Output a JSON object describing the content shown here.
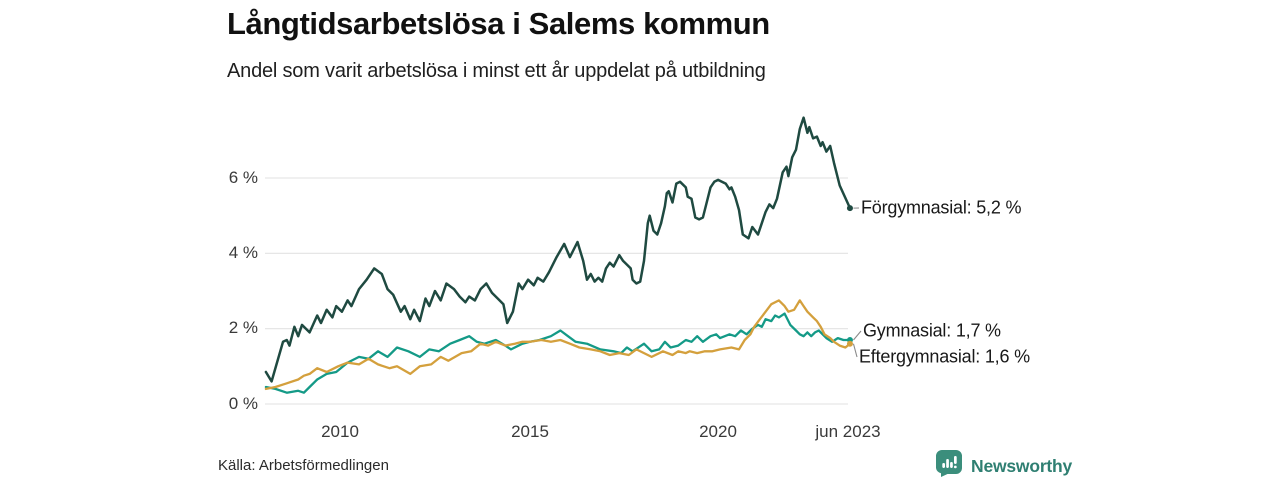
{
  "header": {
    "title": "Långtidsarbetslösa i Salems kommun",
    "subtitle": "Andel som varit arbetslösa i minst ett år uppdelat på utbildning"
  },
  "footer": {
    "source": "Källa: Arbetsförmedlingen",
    "brand": "Newsworthy",
    "brand_icon": "bar-chart-speech-bubble-icon",
    "brand_color": "#3b8e7c",
    "brand_text_color": "#2f7f72"
  },
  "chart_data": {
    "type": "line",
    "title": "Långtidsarbetslösa i Salems kommun",
    "subtitle": "Andel som varit arbetslösa i minst ett år uppdelat på utbildning",
    "xlabel": "",
    "ylabel": "",
    "grid": true,
    "grid_color": "#e2e2e2",
    "connector_color": "#8a8a8a",
    "legend_position": "right-end-labels",
    "x_axis": {
      "ticks": [
        "2010",
        "2015",
        "2020",
        "jun 2023"
      ],
      "tick_years": [
        2010,
        2015,
        2020,
        2023.42
      ],
      "range_years": [
        2008.0,
        2023.45
      ]
    },
    "y_axis": {
      "ticks": [
        "0 %",
        "2 %",
        "4 %",
        "6 %"
      ],
      "tick_values": [
        0,
        2,
        4,
        6
      ],
      "range": [
        0,
        7.8
      ]
    },
    "series": [
      {
        "name": "Förgymnasial",
        "end_label": "Förgymnasial: 5,2 %",
        "end_value": "5,2 %",
        "color": "#1f4a41",
        "points": [
          [
            2008.05,
            0.85
          ],
          [
            2008.2,
            0.6
          ],
          [
            2008.5,
            1.65
          ],
          [
            2008.6,
            1.7
          ],
          [
            2008.67,
            1.55
          ],
          [
            2008.8,
            2.05
          ],
          [
            2008.9,
            1.8
          ],
          [
            2009.0,
            2.1
          ],
          [
            2009.2,
            1.9
          ],
          [
            2009.4,
            2.35
          ],
          [
            2009.5,
            2.15
          ],
          [
            2009.65,
            2.5
          ],
          [
            2009.8,
            2.3
          ],
          [
            2009.9,
            2.6
          ],
          [
            2010.05,
            2.45
          ],
          [
            2010.2,
            2.75
          ],
          [
            2010.3,
            2.6
          ],
          [
            2010.5,
            3.05
          ],
          [
            2010.7,
            3.3
          ],
          [
            2010.9,
            3.6
          ],
          [
            2011.1,
            3.45
          ],
          [
            2011.25,
            3.05
          ],
          [
            2011.4,
            2.9
          ],
          [
            2011.6,
            2.45
          ],
          [
            2011.7,
            2.6
          ],
          [
            2011.85,
            2.25
          ],
          [
            2011.95,
            2.5
          ],
          [
            2012.1,
            2.2
          ],
          [
            2012.25,
            2.8
          ],
          [
            2012.35,
            2.6
          ],
          [
            2012.5,
            3.0
          ],
          [
            2012.65,
            2.75
          ],
          [
            2012.8,
            3.2
          ],
          [
            2013.0,
            3.05
          ],
          [
            2013.15,
            2.85
          ],
          [
            2013.3,
            2.7
          ],
          [
            2013.4,
            2.85
          ],
          [
            2013.55,
            2.75
          ],
          [
            2013.7,
            3.05
          ],
          [
            2013.85,
            3.2
          ],
          [
            2014.0,
            2.95
          ],
          [
            2014.15,
            2.8
          ],
          [
            2014.3,
            2.65
          ],
          [
            2014.4,
            2.15
          ],
          [
            2014.55,
            2.45
          ],
          [
            2014.7,
            3.2
          ],
          [
            2014.8,
            3.05
          ],
          [
            2014.95,
            3.3
          ],
          [
            2015.1,
            3.15
          ],
          [
            2015.2,
            3.35
          ],
          [
            2015.35,
            3.25
          ],
          [
            2015.5,
            3.5
          ],
          [
            2015.7,
            3.9
          ],
          [
            2015.9,
            4.25
          ],
          [
            2016.05,
            3.9
          ],
          [
            2016.25,
            4.3
          ],
          [
            2016.4,
            3.8
          ],
          [
            2016.5,
            3.3
          ],
          [
            2016.6,
            3.45
          ],
          [
            2016.7,
            3.25
          ],
          [
            2016.8,
            3.35
          ],
          [
            2016.9,
            3.25
          ],
          [
            2017.0,
            3.6
          ],
          [
            2017.1,
            3.75
          ],
          [
            2017.2,
            3.65
          ],
          [
            2017.3,
            3.85
          ],
          [
            2017.35,
            3.95
          ],
          [
            2017.45,
            3.8
          ],
          [
            2017.55,
            3.7
          ],
          [
            2017.65,
            3.6
          ],
          [
            2017.7,
            3.3
          ],
          [
            2017.8,
            3.2
          ],
          [
            2017.9,
            3.25
          ],
          [
            2018.0,
            3.8
          ],
          [
            2018.1,
            4.8
          ],
          [
            2018.15,
            5.0
          ],
          [
            2018.25,
            4.6
          ],
          [
            2018.35,
            4.5
          ],
          [
            2018.45,
            4.8
          ],
          [
            2018.55,
            5.25
          ],
          [
            2018.6,
            5.6
          ],
          [
            2018.65,
            5.65
          ],
          [
            2018.75,
            5.35
          ],
          [
            2018.85,
            5.85
          ],
          [
            2018.95,
            5.9
          ],
          [
            2019.1,
            5.75
          ],
          [
            2019.15,
            5.5
          ],
          [
            2019.25,
            5.45
          ],
          [
            2019.35,
            4.95
          ],
          [
            2019.45,
            4.9
          ],
          [
            2019.55,
            4.95
          ],
          [
            2019.65,
            5.35
          ],
          [
            2019.75,
            5.75
          ],
          [
            2019.85,
            5.9
          ],
          [
            2019.95,
            5.95
          ],
          [
            2020.05,
            5.9
          ],
          [
            2020.15,
            5.85
          ],
          [
            2020.25,
            5.7
          ],
          [
            2020.3,
            5.75
          ],
          [
            2020.4,
            5.5
          ],
          [
            2020.5,
            5.15
          ],
          [
            2020.6,
            4.5
          ],
          [
            2020.75,
            4.4
          ],
          [
            2020.85,
            4.7
          ],
          [
            2021.0,
            4.5
          ],
          [
            2021.1,
            4.8
          ],
          [
            2021.2,
            5.1
          ],
          [
            2021.3,
            5.3
          ],
          [
            2021.4,
            5.2
          ],
          [
            2021.5,
            5.45
          ],
          [
            2021.65,
            6.15
          ],
          [
            2021.75,
            6.3
          ],
          [
            2021.8,
            6.05
          ],
          [
            2021.9,
            6.55
          ],
          [
            2022.0,
            6.75
          ],
          [
            2022.1,
            7.3
          ],
          [
            2022.2,
            7.6
          ],
          [
            2022.3,
            7.2
          ],
          [
            2022.35,
            7.35
          ],
          [
            2022.45,
            7.05
          ],
          [
            2022.55,
            7.1
          ],
          [
            2022.65,
            6.85
          ],
          [
            2022.7,
            6.95
          ],
          [
            2022.8,
            6.7
          ],
          [
            2022.9,
            6.85
          ],
          [
            2023.0,
            6.4
          ],
          [
            2023.15,
            5.8
          ],
          [
            2023.42,
            5.2
          ]
        ]
      },
      {
        "name": "Gymnasial",
        "end_label": "Gymnasial: 1,7 %",
        "end_value": "1,7 %",
        "color": "#149a87",
        "points": [
          [
            2008.05,
            0.45
          ],
          [
            2008.3,
            0.4
          ],
          [
            2008.6,
            0.3
          ],
          [
            2008.9,
            0.35
          ],
          [
            2009.05,
            0.3
          ],
          [
            2009.2,
            0.45
          ],
          [
            2009.4,
            0.65
          ],
          [
            2009.65,
            0.8
          ],
          [
            2009.9,
            0.85
          ],
          [
            2010.2,
            1.1
          ],
          [
            2010.5,
            1.25
          ],
          [
            2010.75,
            1.2
          ],
          [
            2011.0,
            1.4
          ],
          [
            2011.25,
            1.25
          ],
          [
            2011.5,
            1.5
          ],
          [
            2011.8,
            1.4
          ],
          [
            2012.1,
            1.25
          ],
          [
            2012.35,
            1.45
          ],
          [
            2012.6,
            1.4
          ],
          [
            2012.9,
            1.6
          ],
          [
            2013.15,
            1.7
          ],
          [
            2013.4,
            1.8
          ],
          [
            2013.6,
            1.65
          ],
          [
            2013.8,
            1.6
          ],
          [
            2014.1,
            1.7
          ],
          [
            2014.35,
            1.55
          ],
          [
            2014.5,
            1.45
          ],
          [
            2014.8,
            1.6
          ],
          [
            2015.0,
            1.65
          ],
          [
            2015.25,
            1.7
          ],
          [
            2015.55,
            1.8
          ],
          [
            2015.8,
            1.95
          ],
          [
            2016.0,
            1.8
          ],
          [
            2016.2,
            1.65
          ],
          [
            2016.5,
            1.6
          ],
          [
            2016.85,
            1.45
          ],
          [
            2017.2,
            1.4
          ],
          [
            2017.4,
            1.35
          ],
          [
            2017.55,
            1.5
          ],
          [
            2017.7,
            1.4
          ],
          [
            2018.0,
            1.6
          ],
          [
            2018.2,
            1.4
          ],
          [
            2018.4,
            1.45
          ],
          [
            2018.55,
            1.65
          ],
          [
            2018.7,
            1.5
          ],
          [
            2018.9,
            1.55
          ],
          [
            2019.1,
            1.7
          ],
          [
            2019.25,
            1.65
          ],
          [
            2019.4,
            1.8
          ],
          [
            2019.55,
            1.65
          ],
          [
            2019.75,
            1.8
          ],
          [
            2019.9,
            1.85
          ],
          [
            2020.0,
            1.75
          ],
          [
            2020.25,
            1.85
          ],
          [
            2020.4,
            1.8
          ],
          [
            2020.55,
            1.95
          ],
          [
            2020.7,
            1.85
          ],
          [
            2020.85,
            2.0
          ],
          [
            2021.0,
            2.1
          ],
          [
            2021.1,
            2.05
          ],
          [
            2021.2,
            2.25
          ],
          [
            2021.35,
            2.2
          ],
          [
            2021.45,
            2.35
          ],
          [
            2021.55,
            2.3
          ],
          [
            2021.7,
            2.4
          ],
          [
            2021.85,
            2.1
          ],
          [
            2022.0,
            1.95
          ],
          [
            2022.1,
            1.85
          ],
          [
            2022.2,
            1.8
          ],
          [
            2022.3,
            1.9
          ],
          [
            2022.4,
            1.8
          ],
          [
            2022.5,
            1.9
          ],
          [
            2022.6,
            1.95
          ],
          [
            2022.8,
            1.75
          ],
          [
            2022.95,
            1.65
          ],
          [
            2023.1,
            1.75
          ],
          [
            2023.25,
            1.7
          ],
          [
            2023.42,
            1.7
          ]
        ]
      },
      {
        "name": "Eftergymnasial",
        "end_label": "Eftergymnasial: 1,6 %",
        "end_value": "1,6 %",
        "color": "#d4a03d",
        "points": [
          [
            2008.05,
            0.4
          ],
          [
            2008.3,
            0.45
          ],
          [
            2008.6,
            0.55
          ],
          [
            2008.9,
            0.65
          ],
          [
            2009.05,
            0.75
          ],
          [
            2009.2,
            0.8
          ],
          [
            2009.4,
            0.95
          ],
          [
            2009.65,
            0.85
          ],
          [
            2009.95,
            1.0
          ],
          [
            2010.2,
            1.1
          ],
          [
            2010.5,
            1.05
          ],
          [
            2010.75,
            1.2
          ],
          [
            2011.0,
            1.05
          ],
          [
            2011.3,
            0.95
          ],
          [
            2011.5,
            1.0
          ],
          [
            2011.85,
            0.8
          ],
          [
            2012.1,
            1.0
          ],
          [
            2012.4,
            1.05
          ],
          [
            2012.65,
            1.25
          ],
          [
            2012.85,
            1.15
          ],
          [
            2013.2,
            1.35
          ],
          [
            2013.45,
            1.4
          ],
          [
            2013.7,
            1.6
          ],
          [
            2013.9,
            1.55
          ],
          [
            2014.1,
            1.65
          ],
          [
            2014.35,
            1.55
          ],
          [
            2014.6,
            1.6
          ],
          [
            2014.8,
            1.65
          ],
          [
            2015.0,
            1.65
          ],
          [
            2015.3,
            1.7
          ],
          [
            2015.55,
            1.65
          ],
          [
            2015.8,
            1.7
          ],
          [
            2016.05,
            1.6
          ],
          [
            2016.3,
            1.5
          ],
          [
            2016.6,
            1.45
          ],
          [
            2016.85,
            1.4
          ],
          [
            2017.1,
            1.3
          ],
          [
            2017.35,
            1.35
          ],
          [
            2017.6,
            1.3
          ],
          [
            2017.8,
            1.45
          ],
          [
            2018.0,
            1.35
          ],
          [
            2018.2,
            1.25
          ],
          [
            2018.5,
            1.4
          ],
          [
            2018.75,
            1.3
          ],
          [
            2018.9,
            1.4
          ],
          [
            2019.1,
            1.35
          ],
          [
            2019.2,
            1.4
          ],
          [
            2019.4,
            1.35
          ],
          [
            2019.6,
            1.4
          ],
          [
            2019.8,
            1.4
          ],
          [
            2020.0,
            1.45
          ],
          [
            2020.3,
            1.5
          ],
          [
            2020.5,
            1.45
          ],
          [
            2020.65,
            1.7
          ],
          [
            2020.8,
            1.85
          ],
          [
            2020.9,
            2.05
          ],
          [
            2021.05,
            2.25
          ],
          [
            2021.2,
            2.45
          ],
          [
            2021.35,
            2.65
          ],
          [
            2021.55,
            2.75
          ],
          [
            2021.7,
            2.6
          ],
          [
            2021.8,
            2.45
          ],
          [
            2021.95,
            2.5
          ],
          [
            2022.1,
            2.75
          ],
          [
            2022.2,
            2.6
          ],
          [
            2022.3,
            2.45
          ],
          [
            2022.45,
            2.3
          ],
          [
            2022.55,
            2.2
          ],
          [
            2022.65,
            2.05
          ],
          [
            2022.75,
            1.85
          ],
          [
            2022.9,
            1.75
          ],
          [
            2023.0,
            1.65
          ],
          [
            2023.15,
            1.55
          ],
          [
            2023.3,
            1.5
          ],
          [
            2023.42,
            1.6
          ]
        ]
      }
    ]
  }
}
